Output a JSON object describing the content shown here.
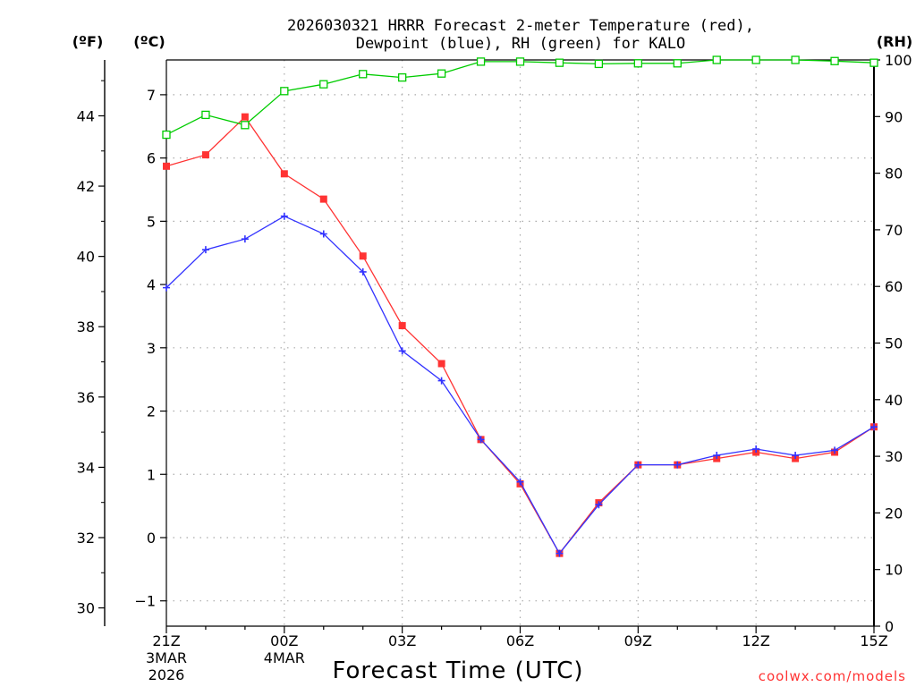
{
  "chart_data": {
    "type": "line",
    "title_line1": "2026030321 HRRR Forecast 2-meter Temperature (red),",
    "title_line2": "Dewpoint (blue), RH (green) for KALO",
    "units": {
      "fahrenheit": "(ºF)",
      "celsius": "(ºC)",
      "rh": "(RH)"
    },
    "xlabel": "Forecast Time (UTC)",
    "credit": "coolwx.com/models",
    "x_ticks": [
      {
        "index": 0,
        "label": "21Z",
        "sub1": "3MAR",
        "sub2": "2026"
      },
      {
        "index": 3,
        "label": "00Z",
        "sub1": "4MAR",
        "sub2": ""
      },
      {
        "index": 6,
        "label": "03Z",
        "sub1": "",
        "sub2": ""
      },
      {
        "index": 9,
        "label": "06Z",
        "sub1": "",
        "sub2": ""
      },
      {
        "index": 12,
        "label": "09Z",
        "sub1": "",
        "sub2": ""
      },
      {
        "index": 15,
        "label": "12Z",
        "sub1": "",
        "sub2": ""
      },
      {
        "index": 18,
        "label": "15Z",
        "sub1": "",
        "sub2": ""
      }
    ],
    "x_count": 19,
    "celsius_range": [
      -1.4,
      7.55
    ],
    "celsius_ticks": [
      -1,
      0,
      1,
      2,
      3,
      4,
      5,
      6,
      7
    ],
    "celsius_tick_labels": [
      "−1",
      "0",
      "1",
      "2",
      "3",
      "4",
      "5",
      "6",
      "7"
    ],
    "fahrenheit_ticks": [
      30,
      32,
      34,
      36,
      38,
      40,
      42,
      44
    ],
    "rh_range": [
      0,
      100
    ],
    "rh_ticks": [
      0,
      10,
      20,
      30,
      40,
      50,
      60,
      70,
      80,
      90,
      100
    ],
    "series": [
      {
        "name": "Temperature",
        "axis": "celsius",
        "color": "#ff3333",
        "marker": "filled-square",
        "values": [
          5.87,
          6.05,
          6.65,
          5.75,
          5.35,
          4.45,
          3.35,
          2.75,
          1.55,
          0.85,
          -0.25,
          0.55,
          1.15,
          1.15,
          1.25,
          1.35,
          1.25,
          1.35,
          1.75
        ]
      },
      {
        "name": "Dewpoint",
        "axis": "celsius",
        "color": "#3333ff",
        "marker": "plus",
        "values": [
          3.95,
          4.55,
          4.72,
          5.08,
          4.8,
          4.2,
          2.95,
          2.48,
          1.55,
          0.88,
          -0.25,
          0.52,
          1.15,
          1.15,
          1.3,
          1.4,
          1.3,
          1.38,
          1.75
        ]
      },
      {
        "name": "RH",
        "axis": "rh",
        "color": "#00cc00",
        "marker": "open-square",
        "values": [
          86.8,
          90.3,
          88.5,
          94.5,
          95.7,
          97.5,
          96.9,
          97.6,
          99.7,
          99.7,
          99.5,
          99.3,
          99.4,
          99.4,
          100,
          100,
          100,
          99.8,
          99.5
        ]
      }
    ]
  }
}
